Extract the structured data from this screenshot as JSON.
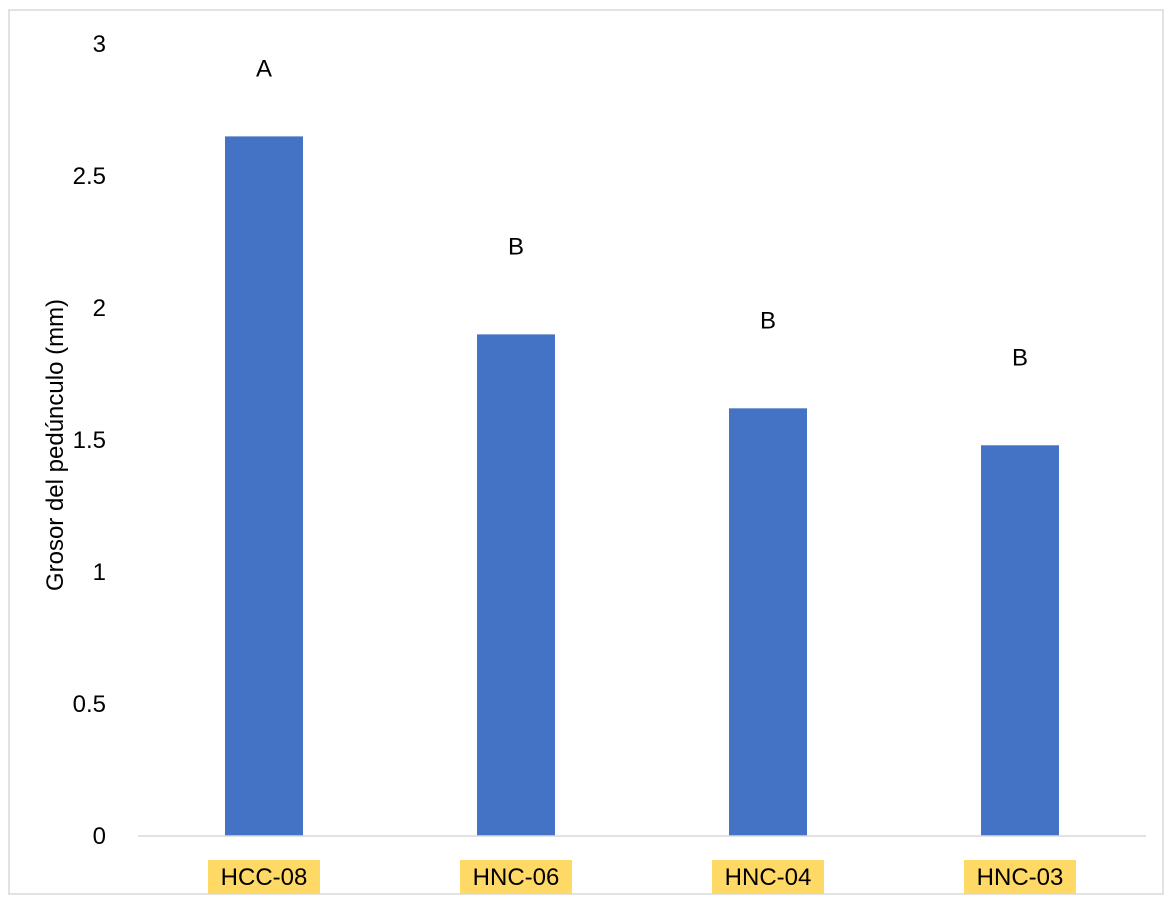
{
  "chart_data": {
    "type": "bar",
    "title": "",
    "xlabel": "",
    "ylabel": "Grosor del pedúnculo  (mm)",
    "categories": [
      "HCC-08",
      "HNC-06",
      "HNC-04",
      "HNC-03"
    ],
    "values": [
      2.65,
      1.9,
      1.62,
      1.48
    ],
    "significance_letters": [
      "A",
      "B",
      "B",
      "B"
    ],
    "yticks": [
      "0",
      "0.5",
      "1",
      "1.5",
      "2",
      "2.5",
      "3"
    ],
    "ylim": [
      0,
      3
    ],
    "grid": false,
    "legend": "none",
    "colors": {
      "bar": "#4472C4",
      "category_highlight": "#FFD966",
      "axis": "#D9D9D9",
      "border": "#D9D9D9"
    }
  }
}
